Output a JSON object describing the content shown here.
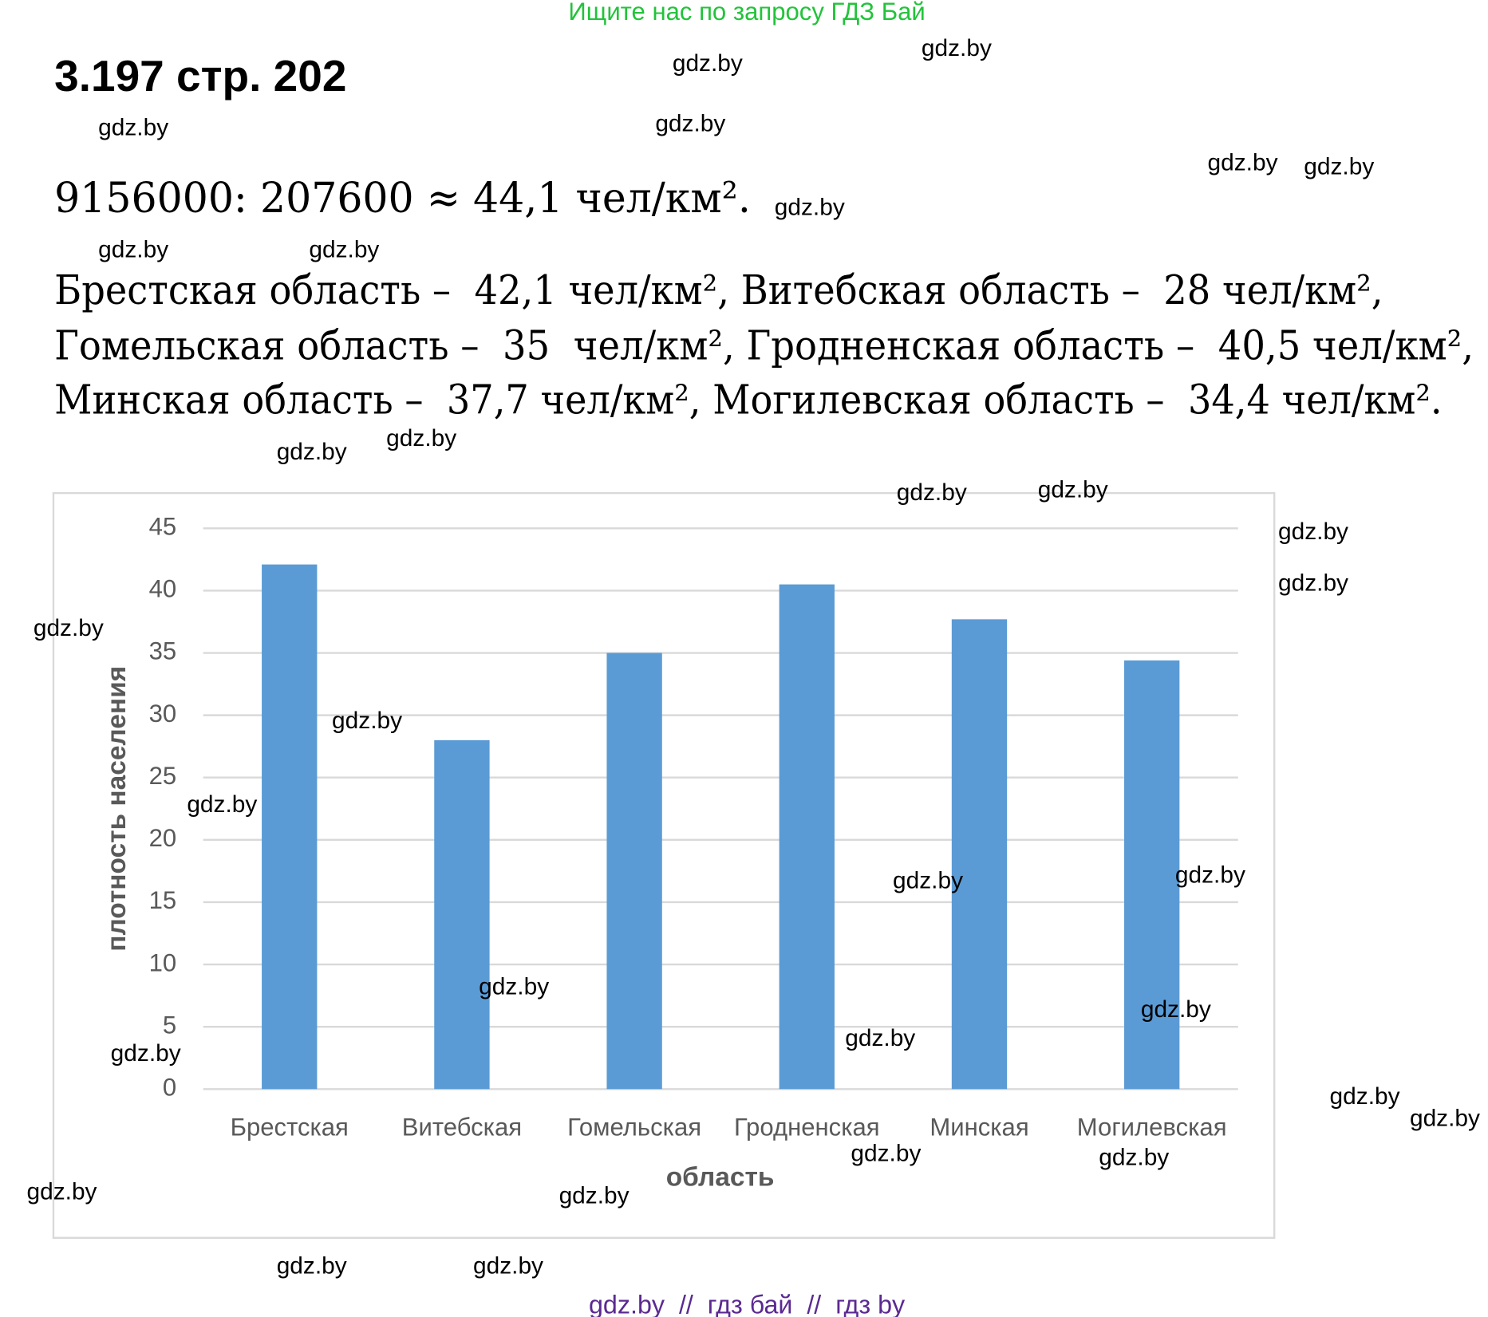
{
  "banner": "Ищите нас по запросу ГДЗ Бай",
  "title": "3.197 стр. 202",
  "equation": "9156000: 207600 ≈ 44,1 чел/км².",
  "lines": [
    "Брестская область –  42,1 чел/км², Витебская область –  28 чел/км²,",
    "Гомельская область –  35  чел/км², Гродненская область –  40,5 чел/км²,",
    "Минская область –  37,7 чел/км², Могилевская область –  34,4 чел/км²."
  ],
  "chart_data": {
    "type": "bar",
    "x_label": "область",
    "y_label": "плотность населения",
    "categories": [
      "Брестская",
      "Витебская",
      "Гомельская",
      "Гродненская",
      "Минская",
      "Могилевская"
    ],
    "values": [
      42.1,
      28,
      35,
      40.5,
      37.7,
      34.4
    ],
    "color": "#5b9bd5",
    "ylim": [
      0,
      45
    ],
    "yticks": [
      0,
      5,
      10,
      15,
      20,
      25,
      30,
      35,
      40,
      45
    ],
    "grid": true
  },
  "watermarks": [
    "gdz.by",
    "gdz.by",
    "gdz.by",
    "gdz.by",
    "gdz.by",
    "gdz.by",
    "gdz.by",
    "gdz.by",
    "gdz.by",
    "gdz.by",
    "gdz.by",
    "gdz.by",
    "gdz.by",
    "gdz.by",
    "gdz.by",
    "gdz.by",
    "gdz.by",
    "gdz.by",
    "gdz.by",
    "gdz.by",
    "gdz.by",
    "gdz.by",
    "gdz.by",
    "gdz.by",
    "gdz.by",
    "gdz.by",
    "gdz.by",
    "gdz.by",
    "gdz.by",
    "gdz.by",
    "gdz.by",
    "gdz.by"
  ],
  "footer": "gdz.by  //  гдз бай  //  гдз by"
}
